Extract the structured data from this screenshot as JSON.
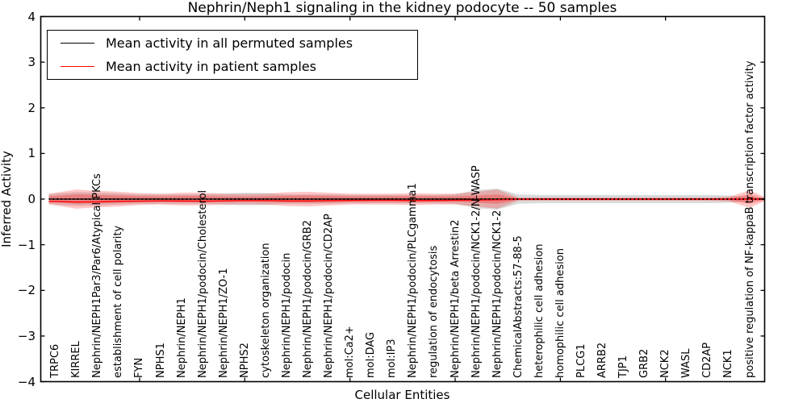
{
  "title": "Nephrin/Neph1 signaling in the kidney podocyte -- 50 samples",
  "axes": {
    "y_label": "Inferred Activity",
    "x_label": "Cellular Entities",
    "y_tick_labels": [
      "4",
      "3",
      "2",
      "1",
      "0",
      "−1",
      "−2",
      "−3",
      "−4"
    ],
    "y_tick_values": [
      4,
      3,
      2,
      1,
      0,
      -1,
      -2,
      -3,
      -4
    ]
  },
  "legend": {
    "entries": [
      {
        "label": "Mean activity in all permuted samples",
        "color": "#000000"
      },
      {
        "label": "Mean activity in patient samples",
        "color": "#ff0000"
      }
    ]
  },
  "chart_data": {
    "type": "line",
    "title": "Nephrin/Neph1 signaling in the kidney podocyte -- 50 samples",
    "xlabel": "Cellular Entities",
    "ylabel": "Inferred Activity",
    "ylim": [
      -4,
      4
    ],
    "xlim_note": "34 entities evenly spaced, ticks every 5th entity",
    "x_major_ticks": [
      5,
      10,
      15,
      20,
      25,
      30
    ],
    "grid": false,
    "legend_position": "upper left",
    "categories": [
      "TRPC6",
      "KIRREL",
      "Nephrin/NEPH1Par3/Par6/Atypical PKCs",
      "establishment of cell polarity",
      "FYN",
      "NPHS1",
      "Nephrin/NEPH1",
      "Nephrin/NEPH1/podocin/Cholesterol",
      "Nephrin/NEPH1/ZO-1",
      "NPHS2",
      "cytoskeleton organization",
      "Nephrin/NEPH1/podocin",
      "Nephrin/NEPH1/podocin/GRB2",
      "Nephrin/NEPH1/podocin/CD2AP",
      "mol:Ca2+",
      "mol:DAG",
      "mol:IP3",
      "Nephrin/NEPH1/podocin/PLCgamma1",
      "regulation of endocytosis",
      "Nephrin/NEPH1/beta Arrestin2",
      "Nephrin/NEPH1/podocin/NCK1-2/N-WASP",
      "Nephrin/NEPH1/podocin/NCK1-2",
      "ChemicalAbstracts:57-88-5",
      "heterophilic cell adhesion",
      "homophilic cell adhesion",
      "PLCG1",
      "ARRB2",
      "TJP1",
      "GRB2",
      "NCK2",
      "WASL",
      "CD2AP",
      "NCK1",
      "positive regulation of NF-kappaB transcription factor activity"
    ],
    "series": [
      {
        "name": "Mean activity in all permuted samples",
        "color": "#000000",
        "values": [
          0,
          0,
          0,
          0,
          0,
          0,
          0,
          0,
          0,
          0,
          0,
          0,
          0,
          0,
          0,
          0,
          0,
          0,
          0,
          0,
          0,
          0,
          0,
          0,
          0,
          0,
          0,
          0,
          0,
          0,
          0,
          0,
          0,
          0
        ]
      },
      {
        "name": "Mean activity in patient samples",
        "color": "#ff0000",
        "values": [
          -0.055,
          -0.065,
          -0.06,
          -0.05,
          -0.045,
          -0.04,
          -0.04,
          -0.045,
          -0.04,
          -0.035,
          -0.035,
          -0.04,
          -0.04,
          -0.035,
          -0.03,
          -0.025,
          -0.025,
          -0.03,
          -0.03,
          -0.025,
          -0.02,
          -0.015,
          -0.005,
          -0.005,
          -0.005,
          -0.005,
          -0.005,
          -0.005,
          -0.005,
          -0.005,
          -0.005,
          -0.005,
          -0.005,
          0
        ]
      }
    ],
    "bands": [
      {
        "name": "permuted-std",
        "color": "rgba(140,140,140,0.32)",
        "center": 0,
        "edge_left": 0.1,
        "edge_right": 0.03,
        "half_widths": [
          0.12,
          0.15,
          0.14,
          0.12,
          0.1,
          0.1,
          0.1,
          0.1,
          0.12,
          0.14,
          0.13,
          0.1,
          0.1,
          0.1,
          0.09,
          0.09,
          0.09,
          0.09,
          0.09,
          0.1,
          0.2,
          0.23,
          0.1,
          0.09,
          0.09,
          0.09,
          0.09,
          0.09,
          0.09,
          0.09,
          0.09,
          0.09,
          0.08,
          0.04
        ]
      },
      {
        "name": "patient-std-outer",
        "color": "rgba(255,0,0,0.22)",
        "center": 0,
        "edge_left": 0.12,
        "edge_right": 0.05,
        "half_widths": [
          0.14,
          0.21,
          0.18,
          0.16,
          0.13,
          0.12,
          0.14,
          0.14,
          0.12,
          0.11,
          0.12,
          0.15,
          0.16,
          0.14,
          0.12,
          0.12,
          0.12,
          0.13,
          0.12,
          0.12,
          0.16,
          0.21,
          0.035,
          0.035,
          0.035,
          0.035,
          0.035,
          0.035,
          0.035,
          0.035,
          0.035,
          0.035,
          0.05,
          0.19
        ]
      },
      {
        "name": "patient-std-inner",
        "color": "rgba(255,0,0,0.26)",
        "center": 0,
        "edge_left": 0.06,
        "edge_right": 0.025,
        "half_widths": [
          0.07,
          0.1,
          0.09,
          0.08,
          0.065,
          0.06,
          0.07,
          0.07,
          0.06,
          0.055,
          0.06,
          0.075,
          0.08,
          0.07,
          0.06,
          0.06,
          0.06,
          0.065,
          0.06,
          0.06,
          0.08,
          0.1,
          0.02,
          0.02,
          0.02,
          0.02,
          0.02,
          0.02,
          0.02,
          0.02,
          0.02,
          0.02,
          0.025,
          0.1
        ]
      }
    ]
  }
}
